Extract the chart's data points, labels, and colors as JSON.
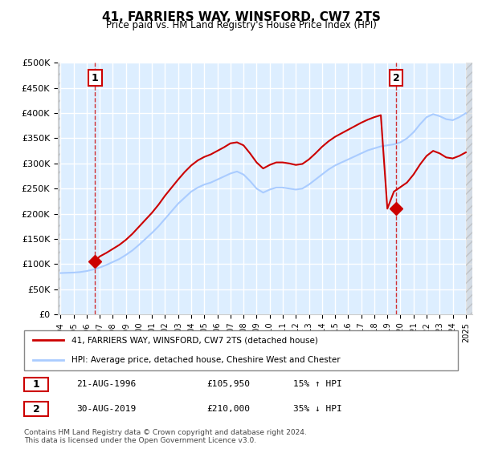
{
  "title": "41, FARRIERS WAY, WINSFORD, CW7 2TS",
  "subtitle": "Price paid vs. HM Land Registry's House Price Index (HPI)",
  "xlabel": "",
  "ylabel": "",
  "ylim": [
    0,
    500000
  ],
  "yticks": [
    0,
    50000,
    100000,
    150000,
    200000,
    250000,
    300000,
    350000,
    400000,
    450000,
    500000
  ],
  "ytick_labels": [
    "£0",
    "£50K",
    "£100K",
    "£150K",
    "£200K",
    "£250K",
    "£300K",
    "£350K",
    "£400K",
    "£450K",
    "£500K"
  ],
  "background_color": "#ffffff",
  "plot_bg_color": "#ddeeff",
  "hatch_bg_color": "#cccccc",
  "grid_color": "#ffffff",
  "hpi_line_color": "#aaccff",
  "price_line_color": "#cc0000",
  "sale1_x": 1996.65,
  "sale1_y": 105950,
  "sale2_x": 2019.67,
  "sale2_y": 210000,
  "sale1_label": "1",
  "sale2_label": "2",
  "legend_line1": "41, FARRIERS WAY, WINSFORD, CW7 2TS (detached house)",
  "legend_line2": "HPI: Average price, detached house, Cheshire West and Chester",
  "table_row1": [
    "1",
    "21-AUG-1996",
    "£105,950",
    "15% ↑ HPI"
  ],
  "table_row2": [
    "2",
    "30-AUG-2019",
    "£210,000",
    "35% ↓ HPI"
  ],
  "footer": "Contains HM Land Registry data © Crown copyright and database right 2024.\nThis data is licensed under the Open Government Licence v3.0.",
  "hpi_data_x": [
    1994,
    1994.5,
    1995,
    1995.5,
    1996,
    1996.5,
    1997,
    1997.5,
    1998,
    1998.5,
    1999,
    1999.5,
    2000,
    2000.5,
    2001,
    2001.5,
    2002,
    2002.5,
    2003,
    2003.5,
    2004,
    2004.5,
    2005,
    2005.5,
    2006,
    2006.5,
    2007,
    2007.5,
    2008,
    2008.5,
    2009,
    2009.5,
    2010,
    2010.5,
    2011,
    2011.5,
    2012,
    2012.5,
    2013,
    2013.5,
    2014,
    2014.5,
    2015,
    2015.5,
    2016,
    2016.5,
    2017,
    2017.5,
    2018,
    2018.5,
    2019,
    2019.5,
    2020,
    2020.5,
    2021,
    2021.5,
    2022,
    2022.5,
    2023,
    2023.5,
    2024,
    2024.5,
    2025
  ],
  "hpi_data_y": [
    82000,
    82500,
    83000,
    84000,
    86000,
    89000,
    93000,
    98000,
    104000,
    110000,
    118000,
    127000,
    138000,
    150000,
    162000,
    175000,
    190000,
    205000,
    220000,
    232000,
    244000,
    252000,
    258000,
    262000,
    268000,
    274000,
    280000,
    284000,
    278000,
    265000,
    250000,
    242000,
    248000,
    252000,
    252000,
    250000,
    248000,
    250000,
    258000,
    268000,
    278000,
    288000,
    296000,
    302000,
    308000,
    314000,
    320000,
    326000,
    330000,
    334000,
    336000,
    338000,
    342000,
    350000,
    362000,
    378000,
    392000,
    398000,
    394000,
    388000,
    386000,
    392000,
    400000
  ],
  "price_data_x": [
    1996.65,
    1997,
    1997.5,
    1998,
    1998.5,
    1999,
    1999.5,
    2000,
    2000.5,
    2001,
    2001.5,
    2002,
    2002.5,
    2003,
    2003.5,
    2004,
    2004.5,
    2005,
    2005.5,
    2006,
    2006.5,
    2007,
    2007.5,
    2008,
    2008.5,
    2009,
    2009.5,
    2010,
    2010.5,
    2011,
    2011.5,
    2012,
    2012.5,
    2013,
    2013.5,
    2014,
    2014.5,
    2015,
    2015.5,
    2016,
    2016.5,
    2017,
    2017.5,
    2018,
    2018.5,
    2019,
    2019.5,
    2020,
    2020.5,
    2021,
    2021.5,
    2022,
    2022.5,
    2023,
    2023.5,
    2024,
    2024.5,
    2025
  ],
  "price_data_y": [
    105950,
    115000,
    122000,
    130000,
    138000,
    148000,
    160000,
    174000,
    188000,
    202000,
    218000,
    236000,
    252000,
    268000,
    283000,
    296000,
    306000,
    313000,
    318000,
    325000,
    332000,
    340000,
    342000,
    336000,
    320000,
    302000,
    290000,
    297000,
    302000,
    302000,
    300000,
    297000,
    299000,
    308000,
    320000,
    333000,
    344000,
    353000,
    360000,
    367000,
    374000,
    381000,
    387000,
    392000,
    396000,
    210000,
    244000,
    253000,
    262000,
    278000,
    298000,
    315000,
    325000,
    320000,
    312000,
    310000,
    315000,
    322000
  ],
  "dashed_vline1_x": 1996.65,
  "dashed_vline2_x": 2019.67,
  "xlim_left": 1993.8,
  "xlim_right": 2025.5,
  "xticks": [
    1994,
    1995,
    1996,
    1997,
    1998,
    1999,
    2000,
    2001,
    2002,
    2003,
    2004,
    2005,
    2006,
    2007,
    2008,
    2009,
    2010,
    2011,
    2012,
    2013,
    2014,
    2015,
    2016,
    2017,
    2018,
    2019,
    2020,
    2021,
    2022,
    2023,
    2024,
    2025
  ]
}
